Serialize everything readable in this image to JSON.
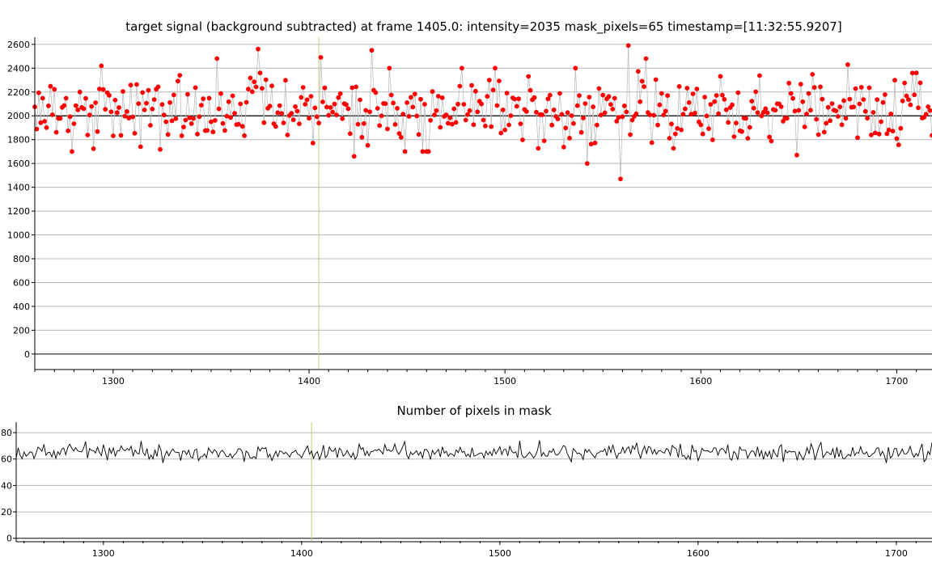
{
  "chart_data": [
    {
      "type": "scatter",
      "title": "target signal (background subtracted) at frame 1405.0: intensity=2035 mask_pixels=65 timestamp=[11:32:55.9207]",
      "xlabel": "",
      "ylabel": "",
      "xlim": [
        1260,
        1718
      ],
      "ylim": [
        -130,
        2660
      ],
      "xticks": [
        1300,
        1400,
        1500,
        1600,
        1700
      ],
      "yticks": [
        0,
        200,
        400,
        600,
        800,
        1000,
        1200,
        1400,
        1600,
        1800,
        2000,
        2200,
        2400,
        2600
      ],
      "grid": true,
      "reference_line_y": 2000,
      "cursor_frame": 1405,
      "marker_color": "#ff0000",
      "stem_color": "#bdbdbd",
      "cursor_color": "#c8c87a",
      "series_summary": {
        "frames": [
          1260,
          1718
        ],
        "mean_approx": 2050,
        "spread_approx": [
          1470,
          2590
        ]
      },
      "notable_points": [
        {
          "x": 1294,
          "y": 2420
        },
        {
          "x": 1314,
          "y": 1740
        },
        {
          "x": 1353,
          "y": 2480
        },
        {
          "x": 1374,
          "y": 2560
        },
        {
          "x": 1406,
          "y": 2490
        },
        {
          "x": 1432,
          "y": 2550
        },
        {
          "x": 1423,
          "y": 1660
        },
        {
          "x": 1449,
          "y": 1700
        },
        {
          "x": 1536,
          "y": 2400
        },
        {
          "x": 1542,
          "y": 1600
        },
        {
          "x": 1559,
          "y": 1470
        },
        {
          "x": 1563,
          "y": 2590
        },
        {
          "x": 1572,
          "y": 2480
        },
        {
          "x": 1649,
          "y": 1670
        },
        {
          "x": 1675,
          "y": 2430
        },
        {
          "x": 1710,
          "y": 2360
        }
      ]
    },
    {
      "type": "line",
      "title": "Number of pixels in mask",
      "xlabel": "",
      "ylabel": "",
      "xlim": [
        1256,
        1718
      ],
      "ylim": [
        -2,
        88
      ],
      "xticks": [
        1300,
        1400,
        1500,
        1600,
        1700
      ],
      "yticks": [
        0,
        20,
        40,
        60,
        80
      ],
      "grid": true,
      "cursor_frame": 1405,
      "line_color": "#000000",
      "series_summary": {
        "frames": [
          1256,
          1718
        ],
        "mean_approx": 65,
        "range_approx": [
          57,
          78
        ]
      }
    }
  ]
}
